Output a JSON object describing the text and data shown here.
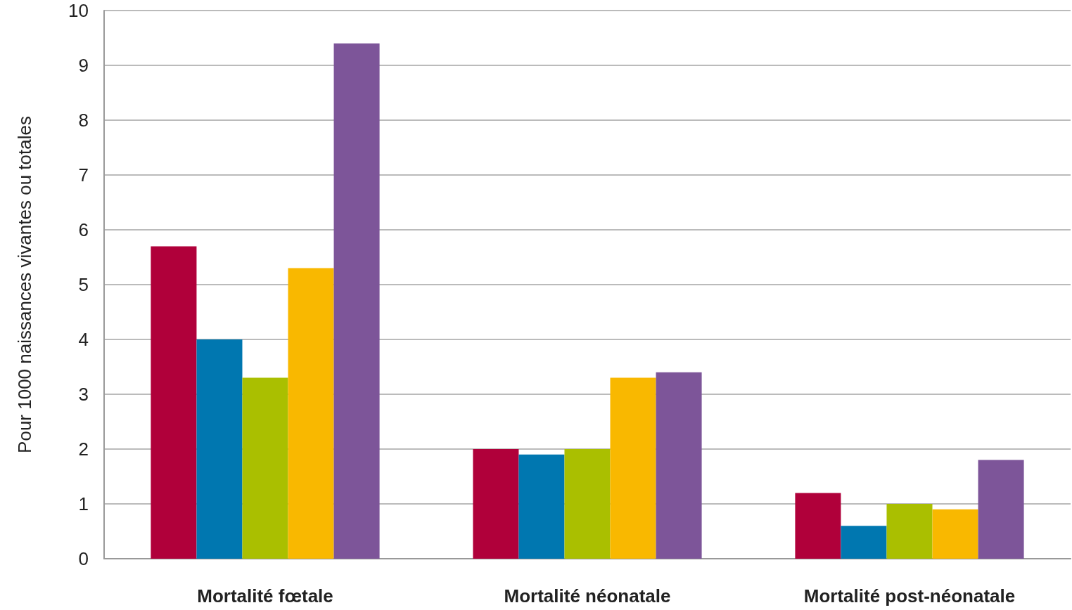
{
  "chart_data": {
    "type": "bar",
    "ylabel": "Pour 1000 naissances vivantes ou totales",
    "categories": [
      "Mortalité fœtale",
      "Mortalité néonatale",
      "Mortalité post-néonatale"
    ],
    "series": [
      {
        "color": "#b0003a",
        "values": [
          5.7,
          2.0,
          1.2
        ]
      },
      {
        "color": "#0077b0",
        "values": [
          4.0,
          1.9,
          0.6
        ]
      },
      {
        "color": "#aabf00",
        "values": [
          3.3,
          2.0,
          1.0
        ]
      },
      {
        "color": "#f9b800",
        "values": [
          5.3,
          3.3,
          0.9
        ]
      },
      {
        "color": "#7d5599",
        "values": [
          9.4,
          3.4,
          1.8
        ]
      }
    ],
    "ylim": [
      0,
      10
    ],
    "yticks": [
      0,
      1,
      2,
      3,
      4,
      5,
      6,
      7,
      8,
      9,
      10
    ],
    "grid": "y"
  }
}
